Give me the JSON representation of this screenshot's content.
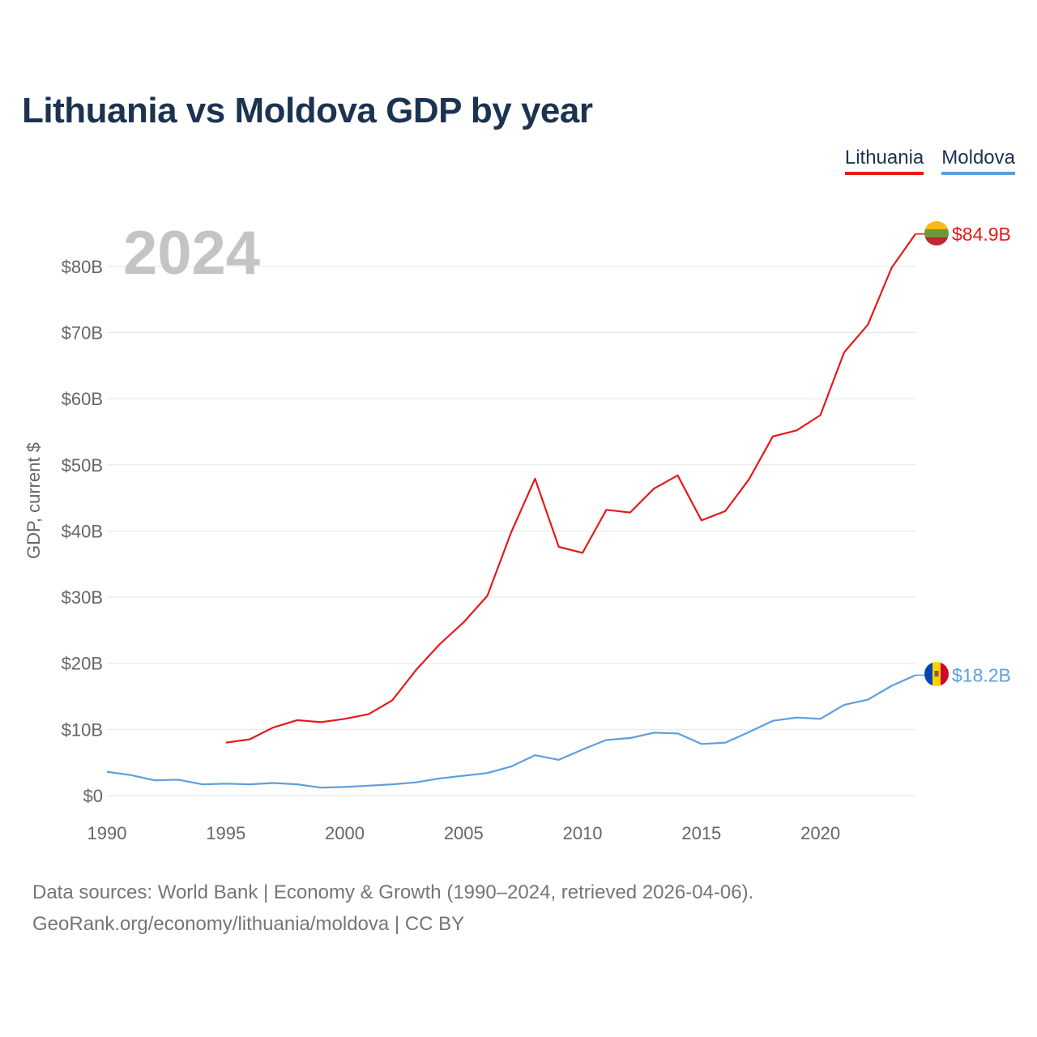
{
  "chart_data": {
    "type": "line",
    "title": "Lithuania vs Moldova GDP by year",
    "year_overlay": "2024",
    "ylabel": "GDP, current $",
    "xlabel": "",
    "xlim": [
      1990,
      2024
    ],
    "ylim": [
      0,
      85
    ],
    "x_ticks": [
      1990,
      1995,
      2000,
      2005,
      2010,
      2015,
      2020
    ],
    "x_tick_labels": [
      "1990",
      "1995",
      "2000",
      "2005",
      "2010",
      "2015",
      "2020"
    ],
    "y_ticks": [
      0,
      10,
      20,
      30,
      40,
      50,
      60,
      70,
      80
    ],
    "y_tick_labels": [
      "$0",
      "$10B",
      "$20B",
      "$30B",
      "$40B",
      "$50B",
      "$60B",
      "$70B",
      "$80B"
    ],
    "grid": true,
    "legend_position": "top-right",
    "series": [
      {
        "name": "Lithuania",
        "color": "#e41a1c",
        "end_label": "$84.9B",
        "flag": "lithuania-flag",
        "years": [
          1995,
          1996,
          1997,
          1998,
          1999,
          2000,
          2001,
          2002,
          2003,
          2004,
          2005,
          2006,
          2007,
          2008,
          2009,
          2010,
          2011,
          2012,
          2013,
          2014,
          2015,
          2016,
          2017,
          2018,
          2019,
          2020,
          2021,
          2022,
          2023,
          2024
        ],
        "values": [
          8.0,
          8.5,
          10.3,
          11.4,
          11.1,
          11.6,
          12.3,
          14.4,
          19.0,
          22.9,
          26.2,
          30.2,
          39.8,
          47.9,
          37.6,
          36.7,
          43.2,
          42.8,
          46.4,
          48.4,
          41.6,
          43.0,
          47.8,
          54.3,
          55.2,
          57.5,
          67.0,
          71.2,
          79.8,
          84.9
        ]
      },
      {
        "name": "Moldova",
        "color": "#5b9fe0",
        "end_label": "$18.2B",
        "flag": "moldova-flag",
        "years": [
          1990,
          1991,
          1992,
          1993,
          1994,
          1995,
          1996,
          1997,
          1998,
          1999,
          2000,
          2001,
          2002,
          2003,
          2004,
          2005,
          2006,
          2007,
          2008,
          2009,
          2010,
          2011,
          2012,
          2013,
          2014,
          2015,
          2016,
          2017,
          2018,
          2019,
          2020,
          2021,
          2022,
          2023,
          2024
        ],
        "values": [
          3.6,
          3.1,
          2.3,
          2.4,
          1.7,
          1.8,
          1.7,
          1.9,
          1.7,
          1.2,
          1.3,
          1.5,
          1.7,
          2.0,
          2.6,
          3.0,
          3.4,
          4.4,
          6.1,
          5.4,
          6.97,
          8.4,
          8.7,
          9.5,
          9.4,
          7.8,
          8.0,
          9.6,
          11.3,
          11.8,
          11.6,
          13.7,
          14.5,
          16.6,
          18.2
        ]
      }
    ]
  },
  "legend": {
    "lithuania": "Lithuania",
    "moldova": "Moldova"
  },
  "footer": {
    "line1": "Data sources: World Bank | Economy & Growth (1990–2024, retrieved 2026-04-06).",
    "line2": "GeoRank.org/economy/lithuania/moldova | CC BY"
  }
}
